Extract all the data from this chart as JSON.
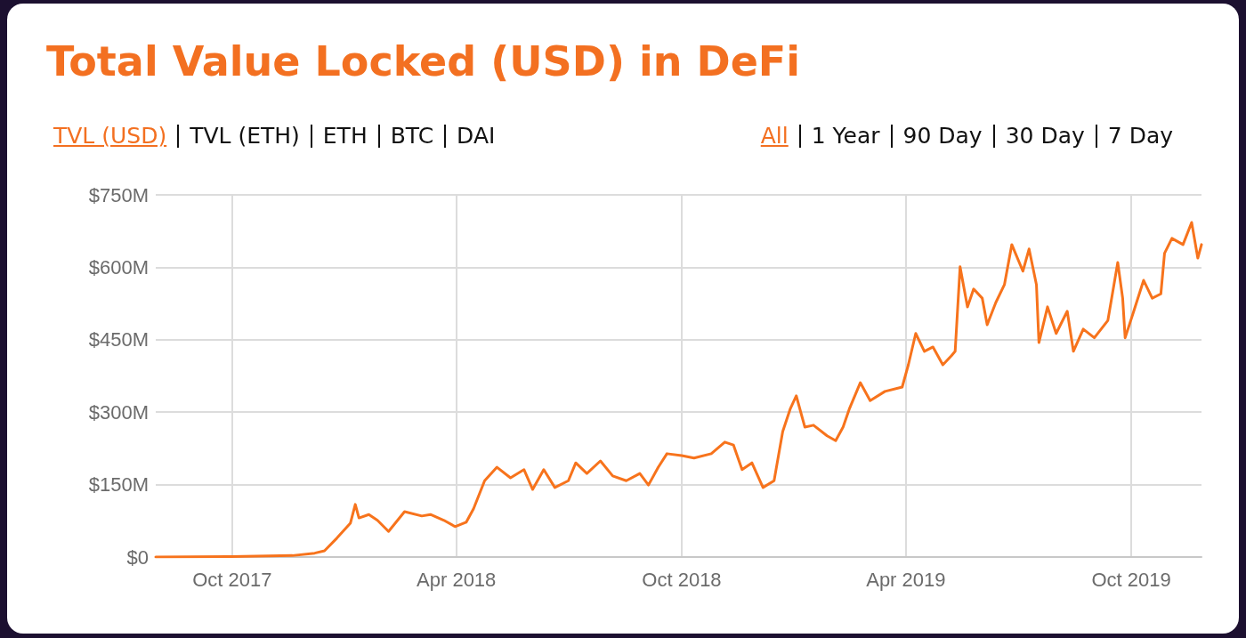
{
  "chart_data": {
    "type": "line",
    "title": "Total Value Locked (USD) in DeFi",
    "annotations": [
      "TVL (USD)",
      "TVL (ETH)",
      "ETH",
      "BTC",
      "DAI",
      "All",
      "1 Year",
      "90 Day",
      "30 Day",
      "7 Day"
    ],
    "x": [
      "2017-07-31",
      "2017-10-01",
      "2017-11-19",
      "2017-12-07",
      "2017-12-15",
      "2017-12-25",
      "2018-01-05",
      "2018-01-09",
      "2018-01-12",
      "2018-01-20",
      "2018-01-27",
      "2018-02-05",
      "2018-02-18",
      "2018-03-04",
      "2018-03-11",
      "2018-03-22",
      "2018-03-31",
      "2018-04-09",
      "2018-04-15",
      "2018-04-24",
      "2018-05-04",
      "2018-05-15",
      "2018-05-26",
      "2018-06-02",
      "2018-06-11",
      "2018-06-20",
      "2018-07-01",
      "2018-07-07",
      "2018-07-16",
      "2018-07-27",
      "2018-08-06",
      "2018-08-17",
      "2018-08-28",
      "2018-09-04",
      "2018-09-12",
      "2018-09-19",
      "2018-10-01",
      "2018-10-11",
      "2018-10-25",
      "2018-11-05",
      "2018-11-12",
      "2018-11-19",
      "2018-11-27",
      "2018-12-06",
      "2018-12-15",
      "2018-12-22",
      "2018-12-28",
      "2019-01-02",
      "2019-01-09",
      "2019-01-16",
      "2019-01-27",
      "2019-02-03",
      "2019-02-09",
      "2019-02-14",
      "2019-02-23",
      "2019-03-03",
      "2019-03-15",
      "2019-03-29",
      "2019-04-03",
      "2019-04-09",
      "2019-04-16",
      "2019-04-23",
      "2019-05-01",
      "2019-05-08",
      "2019-05-11",
      "2019-05-15",
      "2019-05-21",
      "2019-05-26",
      "2019-06-02",
      "2019-06-06",
      "2019-06-13",
      "2019-06-20",
      "2019-06-26",
      "2019-07-05",
      "2019-07-10",
      "2019-07-16",
      "2019-07-18",
      "2019-07-25",
      "2019-08-01",
      "2019-08-10",
      "2019-08-15",
      "2019-08-23",
      "2019-09-01",
      "2019-09-12",
      "2019-09-20",
      "2019-09-24",
      "2019-09-26",
      "2019-10-03",
      "2019-10-11",
      "2019-10-18",
      "2019-10-25",
      "2019-10-28",
      "2019-11-03",
      "2019-11-12",
      "2019-11-19",
      "2019-11-24",
      "2019-11-27"
    ],
    "series": [
      {
        "color": "#f7731c",
        "values": [
          0,
          1,
          3,
          8,
          13,
          39,
          70,
          109,
          81,
          88,
          76,
          53,
          94,
          85,
          88,
          76,
          63,
          72,
          100,
          158,
          186,
          164,
          181,
          140,
          181,
          144,
          158,
          195,
          173,
          199,
          168,
          158,
          173,
          149,
          186,
          214,
          210,
          205,
          214,
          238,
          232,
          181,
          195,
          144,
          158,
          260,
          306,
          334,
          269,
          273,
          251,
          241,
          269,
          306,
          361,
          324,
          343,
          352,
          398,
          463,
          426,
          435,
          398,
          417,
          426,
          601,
          518,
          555,
          536,
          481,
          527,
          564,
          647,
          592,
          638,
          564,
          444,
          518,
          463,
          509,
          426,
          472,
          454,
          490,
          610,
          536,
          454,
          509,
          573,
          536,
          545,
          629,
          660,
          647,
          693,
          619,
          647
        ]
      }
    ],
    "xlim": [
      "2017-07-31",
      "2019-11-27"
    ],
    "xticks": [
      {
        "value": "2017-10-01",
        "label": "Oct 2017"
      },
      {
        "value": "2018-04-01",
        "label": "Apr 2018"
      },
      {
        "value": "2018-10-01",
        "label": "Oct 2018"
      },
      {
        "value": "2019-04-01",
        "label": "Apr 2019"
      },
      {
        "value": "2019-10-01",
        "label": "Oct 2019"
      }
    ],
    "ylim": [
      0,
      750
    ],
    "yticks": [
      {
        "value": 0,
        "label": "$0"
      },
      {
        "value": 150,
        "label": "$150M"
      },
      {
        "value": 300,
        "label": "$300M"
      },
      {
        "value": 450,
        "label": "$450M"
      },
      {
        "value": 600,
        "label": "$600M"
      },
      {
        "value": 750,
        "label": "$750M"
      }
    ],
    "grid": true,
    "marker": "none",
    "line_style": "solid"
  }
}
